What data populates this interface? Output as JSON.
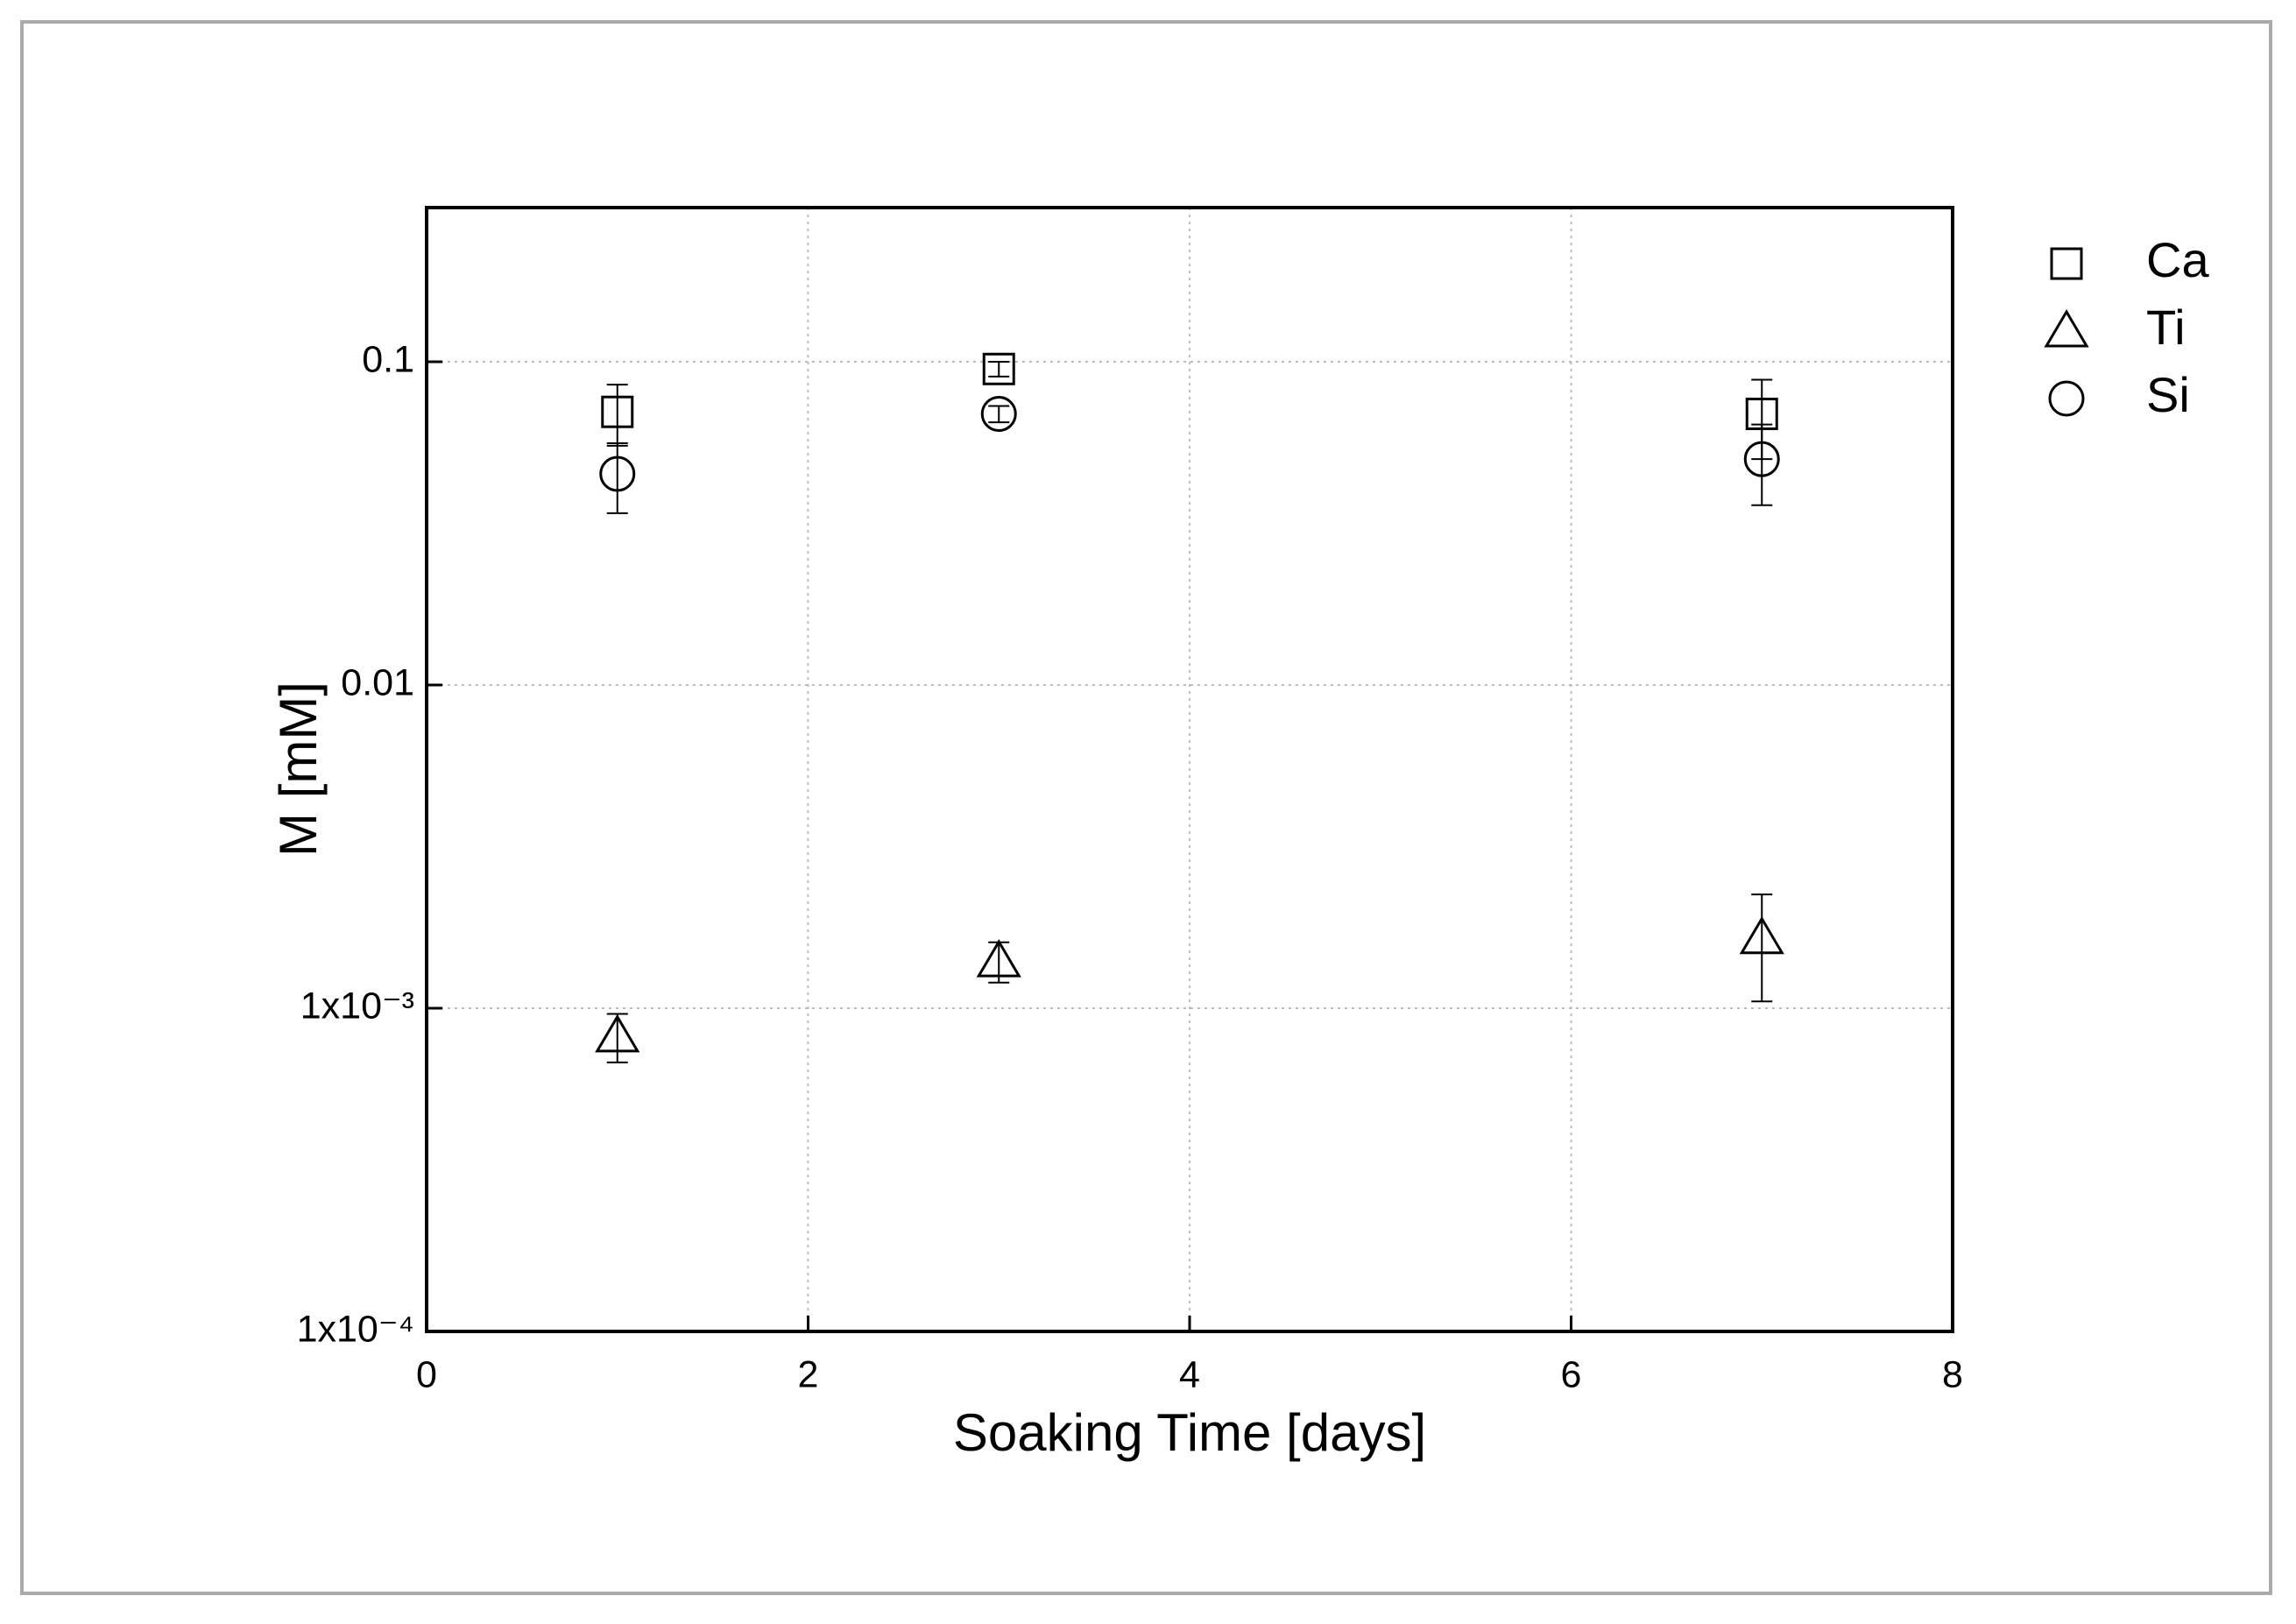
{
  "chart_data": {
    "type": "scatter",
    "xlabel": "Soaking Time [days]",
    "ylabel": "M [mM]",
    "x": [
      1,
      3,
      7
    ],
    "series": [
      {
        "name": "Ca",
        "marker": "square",
        "color": "#000000",
        "values": [
          0.07,
          0.095,
          0.069
        ],
        "errors": [
          0.015,
          0.005,
          0.019
        ]
      },
      {
        "name": "Ti",
        "marker": "triangle",
        "color": "#000000",
        "values": [
          0.00082,
          0.0014,
          0.00165
        ],
        "errors": [
          0.00014,
          0.0002,
          0.0006
        ]
      },
      {
        "name": "Si",
        "marker": "circle",
        "color": "#000000",
        "values": [
          0.045,
          0.069,
          0.05
        ],
        "errors": [
          0.011,
          0.004,
          0.014
        ]
      }
    ],
    "xlim": [
      0,
      8
    ],
    "xticks": [
      0,
      2,
      4,
      6,
      8
    ],
    "ylim": [
      0.0001,
      0.3
    ],
    "ylog": true,
    "yticks": [
      {
        "value": 0.0001,
        "label": "1x10⁻⁴"
      },
      {
        "value": 0.001,
        "label": "1x10⁻³"
      },
      0.01,
      0.1
    ],
    "grid": true,
    "legend": "outside-right"
  }
}
